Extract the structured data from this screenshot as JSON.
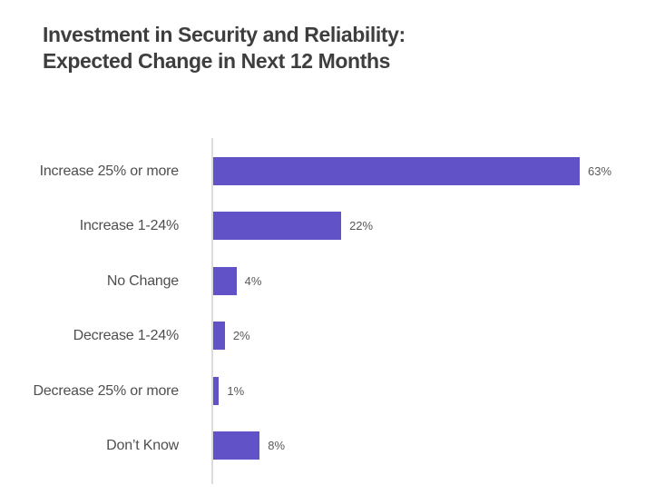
{
  "title": {
    "line1": "Investment in Security and Reliability:",
    "line2": "Expected Change in Next 12 Months"
  },
  "chart_data": {
    "type": "bar",
    "orientation": "horizontal",
    "title": "Investment in Security and Reliability: Expected Change in Next 12 Months",
    "categories": [
      "Increase 25% or more",
      "Increase 1-24%",
      "No Change",
      "Decrease 1-24%",
      "Decrease 25% or more",
      "Don’t Know"
    ],
    "values": [
      63,
      22,
      4,
      2,
      1,
      8
    ],
    "value_labels": [
      "63%",
      "22%",
      "4%",
      "2%",
      "1%",
      "8%"
    ],
    "xlabel": "",
    "ylabel": "",
    "xlim": [
      0,
      70
    ],
    "grid": false,
    "legend": false,
    "bar_color": "#6152c8",
    "axis_line_color": "#dcdcdc",
    "label_color": "#4f4f4f",
    "value_label_color": "#595959",
    "title_color": "#3e3e3e"
  }
}
